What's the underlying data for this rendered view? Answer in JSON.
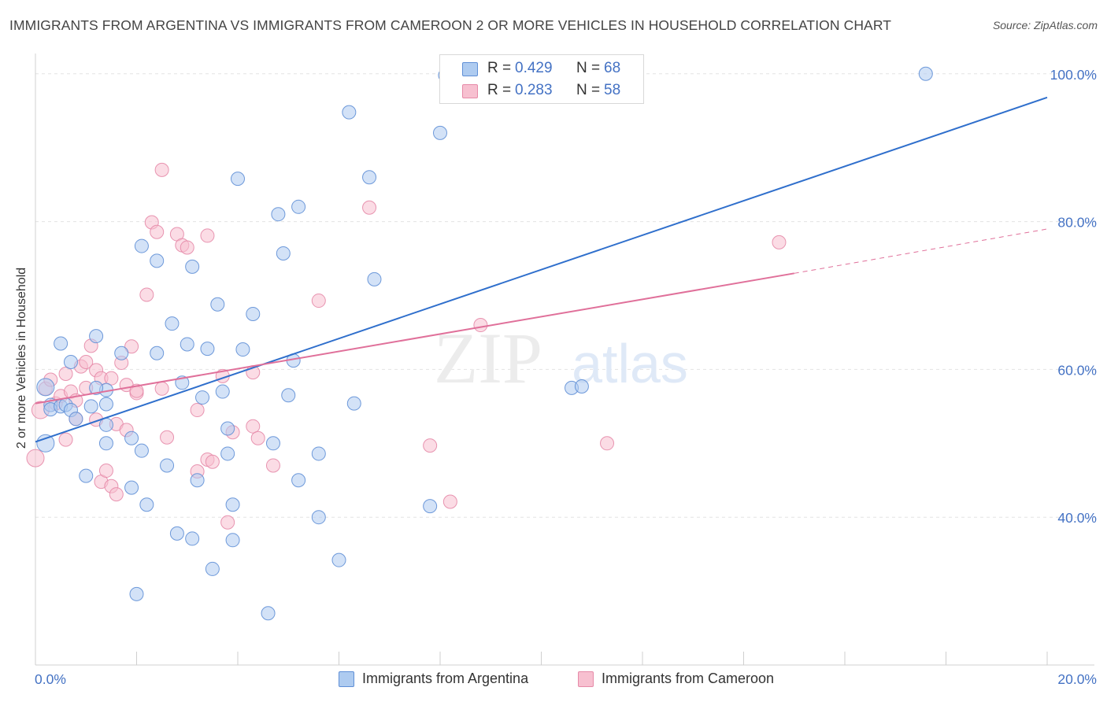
{
  "title": "IMMIGRANTS FROM ARGENTINA VS IMMIGRANTS FROM CAMEROON 2 OR MORE VEHICLES IN HOUSEHOLD CORRELATION CHART",
  "source": "Source: ZipAtlas.com",
  "watermark": {
    "zip": "ZIP",
    "atlas": "atlas"
  },
  "legend": {
    "r_label": "R =",
    "n_label": "N =",
    "rows": [
      {
        "r": "0.429",
        "n": "68"
      },
      {
        "r": "0.283",
        "n": "58"
      }
    ]
  },
  "colors": {
    "blue_fill": "#aecbf0",
    "blue_stroke": "#5f8fd6",
    "blue_line": "#2f6fcc",
    "pink_fill": "#f7c0d0",
    "pink_stroke": "#e68aa8",
    "pink_line": "#e0709a",
    "axis_label": "#4472c4",
    "grid": "#e3e3e3"
  },
  "chart_data": {
    "type": "scatter",
    "title": "IMMIGRANTS FROM ARGENTINA VS IMMIGRANTS FROM CAMEROON 2 OR MORE VEHICLES IN HOUSEHOLD CORRELATION CHART",
    "xlabel": "",
    "ylabel": "2 or more Vehicles in Household",
    "xlim": [
      0,
      20
    ],
    "ylim": [
      20,
      102
    ],
    "x_tick_labels": [
      "0.0%",
      "20.0%"
    ],
    "y_ticks": [
      40,
      60,
      80,
      100
    ],
    "y_tick_labels": [
      "40.0%",
      "60.0%",
      "80.0%",
      "100.0%"
    ],
    "grid": true,
    "legend_position": "top-center",
    "series": [
      {
        "name": "Immigrants from Argentina",
        "R": 0.429,
        "N": 68,
        "trend": {
          "x": [
            0,
            20
          ],
          "y": [
            50.2,
            96.8
          ]
        },
        "points": [
          [
            0.2,
            50.0
          ],
          [
            0.2,
            57.6
          ],
          [
            0.3,
            55.2
          ],
          [
            0.3,
            54.6
          ],
          [
            0.5,
            55.0
          ],
          [
            0.5,
            63.5
          ],
          [
            0.6,
            55.2
          ],
          [
            0.7,
            54.5
          ],
          [
            0.7,
            61.0
          ],
          [
            0.8,
            53.3
          ],
          [
            1.1,
            55.0
          ],
          [
            1.2,
            64.5
          ],
          [
            1.0,
            45.6
          ],
          [
            1.4,
            57.2
          ],
          [
            1.4,
            55.3
          ],
          [
            1.4,
            52.5
          ],
          [
            1.4,
            50.0
          ],
          [
            1.7,
            62.2
          ],
          [
            1.9,
            50.7
          ],
          [
            1.9,
            44.0
          ],
          [
            2.1,
            49.0
          ],
          [
            2.2,
            41.7
          ],
          [
            2.0,
            29.6
          ],
          [
            2.1,
            76.7
          ],
          [
            2.4,
            62.2
          ],
          [
            2.4,
            74.7
          ],
          [
            2.6,
            47.0
          ],
          [
            2.7,
            66.2
          ],
          [
            2.8,
            37.8
          ],
          [
            2.9,
            58.2
          ],
          [
            3.0,
            63.4
          ],
          [
            3.1,
            37.1
          ],
          [
            3.1,
            73.9
          ],
          [
            3.2,
            45.0
          ],
          [
            3.3,
            56.2
          ],
          [
            3.4,
            62.8
          ],
          [
            3.5,
            33.0
          ],
          [
            3.6,
            68.8
          ],
          [
            3.8,
            48.6
          ],
          [
            3.8,
            52.0
          ],
          [
            3.9,
            41.7
          ],
          [
            3.9,
            36.9
          ],
          [
            4.0,
            85.8
          ],
          [
            4.1,
            62.7
          ],
          [
            4.3,
            67.5
          ],
          [
            4.6,
            27.0
          ],
          [
            4.7,
            50.0
          ],
          [
            4.8,
            81.0
          ],
          [
            4.9,
            75.7
          ],
          [
            5.1,
            61.2
          ],
          [
            5.2,
            82.0
          ],
          [
            5.2,
            45.0
          ],
          [
            5.6,
            48.6
          ],
          [
            5.6,
            40.0
          ],
          [
            6.0,
            34.2
          ],
          [
            6.2,
            94.8
          ],
          [
            6.3,
            55.4
          ],
          [
            6.6,
            86.0
          ],
          [
            6.7,
            72.2
          ],
          [
            7.8,
            41.5
          ],
          [
            8.0,
            92.0
          ],
          [
            8.1,
            99.8
          ],
          [
            10.6,
            57.5
          ],
          [
            10.8,
            57.7
          ],
          [
            17.6,
            100.0
          ],
          [
            1.2,
            57.5
          ],
          [
            3.7,
            57.0
          ],
          [
            5.0,
            56.5
          ]
        ]
      },
      {
        "name": "Immigrants from Cameroon",
        "R": 0.283,
        "N": 58,
        "trend": {
          "x": [
            0,
            15
          ],
          "y": [
            55.4,
            73.0
          ]
        },
        "trend_dashed": {
          "x": [
            15,
            20
          ],
          "y": [
            73.0,
            79.0
          ]
        },
        "points": [
          [
            0.0,
            48.0
          ],
          [
            0.1,
            54.5
          ],
          [
            0.2,
            57.4
          ],
          [
            0.3,
            58.6
          ],
          [
            0.4,
            55.4
          ],
          [
            0.5,
            56.4
          ],
          [
            0.6,
            50.5
          ],
          [
            0.6,
            59.4
          ],
          [
            0.7,
            57.0
          ],
          [
            0.8,
            53.3
          ],
          [
            0.8,
            55.8
          ],
          [
            0.9,
            60.4
          ],
          [
            1.0,
            61.0
          ],
          [
            1.0,
            57.5
          ],
          [
            1.1,
            63.2
          ],
          [
            1.2,
            53.2
          ],
          [
            1.2,
            59.9
          ],
          [
            1.3,
            58.8
          ],
          [
            1.3,
            44.8
          ],
          [
            1.4,
            46.3
          ],
          [
            1.5,
            58.8
          ],
          [
            1.5,
            44.2
          ],
          [
            1.6,
            52.6
          ],
          [
            1.6,
            43.1
          ],
          [
            1.7,
            60.9
          ],
          [
            1.8,
            57.9
          ],
          [
            1.8,
            51.8
          ],
          [
            1.9,
            63.1
          ],
          [
            2.0,
            56.8
          ],
          [
            2.0,
            57.1
          ],
          [
            2.2,
            70.1
          ],
          [
            2.3,
            79.9
          ],
          [
            2.4,
            78.6
          ],
          [
            2.5,
            87.0
          ],
          [
            2.5,
            57.4
          ],
          [
            2.6,
            50.8
          ],
          [
            2.8,
            78.3
          ],
          [
            2.9,
            76.8
          ],
          [
            3.0,
            76.5
          ],
          [
            3.2,
            54.5
          ],
          [
            3.2,
            46.2
          ],
          [
            3.4,
            47.8
          ],
          [
            3.4,
            78.1
          ],
          [
            3.5,
            47.5
          ],
          [
            3.7,
            59.1
          ],
          [
            3.8,
            39.3
          ],
          [
            3.9,
            51.5
          ],
          [
            4.3,
            59.6
          ],
          [
            4.3,
            52.3
          ],
          [
            4.4,
            50.7
          ],
          [
            4.7,
            47.0
          ],
          [
            5.6,
            69.3
          ],
          [
            6.6,
            81.9
          ],
          [
            7.8,
            49.7
          ],
          [
            8.2,
            42.1
          ],
          [
            8.8,
            66.0
          ],
          [
            11.3,
            50.0
          ],
          [
            14.7,
            77.2
          ]
        ]
      }
    ]
  }
}
